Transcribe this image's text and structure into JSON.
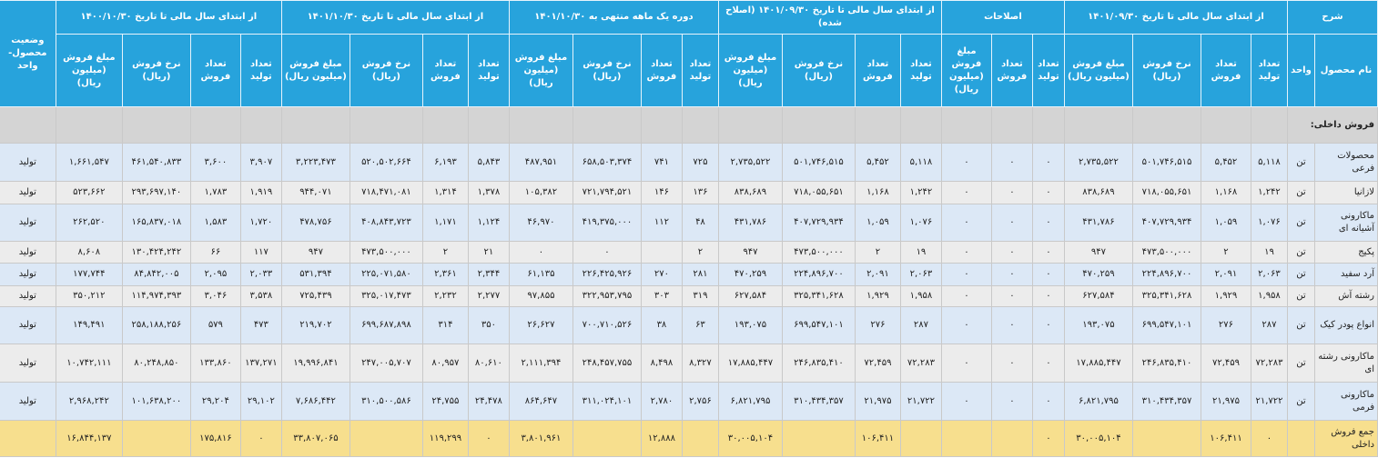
{
  "header": {
    "description": "شرح",
    "status": "وضعیت محصول-واحد",
    "name_col": "نام محصول",
    "unit_col": "واحد",
    "groups": [
      {
        "title": "از ابتدای سال مالی تا تاریخ ۱۴۰۱/۰۹/۳۰",
        "columns": [
          "تعداد تولید",
          "تعداد فروش",
          "نرخ فروش (ریال)",
          "مبلغ فروش (میلیون ریال)"
        ]
      },
      {
        "title": "اصلاحات",
        "columns": [
          "تعداد تولید",
          "تعداد فروش",
          "مبلغ فروش (میلیون ریال)"
        ]
      },
      {
        "title": "از ابتدای سال مالی تا تاریخ ۱۴۰۱/۰۹/۳۰ (اصلاح شده)",
        "columns": [
          "تعداد تولید",
          "تعداد فروش",
          "نرخ فروش (ریال)",
          "مبلغ فروش (میلیون ریال)"
        ]
      },
      {
        "title": "دوره یک ماهه منتهی به ۱۴۰۱/۱۰/۳۰",
        "columns": [
          "تعداد تولید",
          "تعداد فروش",
          "نرخ فروش (ریال)",
          "مبلغ فروش (میلیون ریال)"
        ]
      },
      {
        "title": "از ابتدای سال مالی تا تاریخ ۱۴۰۱/۱۰/۳۰",
        "columns": [
          "تعداد تولید",
          "تعداد فروش",
          "نرخ فروش (ریال)",
          "مبلغ فروش (میلیون ریال)"
        ]
      },
      {
        "title": "از ابتدای سال مالی تا تاریخ ۱۴۰۰/۱۰/۳۰",
        "columns": [
          "تعداد تولید",
          "تعداد فروش",
          "نرخ فروش (ریال)",
          "مبلغ فروش (میلیون ریال)"
        ]
      }
    ]
  },
  "table": {
    "section": "فروش داخلی:",
    "rows": [
      [
        "محصولات فرعی",
        "تن",
        "۵,۱۱۸",
        "۵,۴۵۲",
        "۵۰۱,۷۴۶,۵۱۵",
        "۲,۷۳۵,۵۲۲",
        "۰",
        "۰",
        "۰",
        "۵,۱۱۸",
        "۵,۴۵۲",
        "۵۰۱,۷۴۶,۵۱۵",
        "۲,۷۳۵,۵۲۲",
        "۷۲۵",
        "۷۴۱",
        "۶۵۸,۵۰۳,۳۷۴",
        "۴۸۷,۹۵۱",
        "۵,۸۴۳",
        "۶,۱۹۳",
        "۵۲۰,۵۰۲,۶۶۴",
        "۳,۲۲۳,۴۷۳",
        "۳,۹۰۷",
        "۳,۶۰۰",
        "۴۶۱,۵۴۰,۸۳۳",
        "۱,۶۶۱,۵۴۷",
        "تولید"
      ],
      [
        "لازانیا",
        "تن",
        "۱,۲۴۲",
        "۱,۱۶۸",
        "۷۱۸,۰۵۵,۶۵۱",
        "۸۳۸,۶۸۹",
        "۰",
        "۰",
        "۰",
        "۱,۲۴۲",
        "۱,۱۶۸",
        "۷۱۸,۰۵۵,۶۵۱",
        "۸۳۸,۶۸۹",
        "۱۳۶",
        "۱۴۶",
        "۷۲۱,۷۹۴,۵۲۱",
        "۱۰۵,۳۸۲",
        "۱,۳۷۸",
        "۱,۳۱۴",
        "۷۱۸,۴۷۱,۰۸۱",
        "۹۴۴,۰۷۱",
        "۱,۹۱۹",
        "۱,۷۸۳",
        "۲۹۳,۶۹۷,۱۴۰",
        "۵۲۳,۶۶۲",
        "تولید"
      ],
      [
        "ماکارونی آشیانه ای",
        "تن",
        "۱,۰۷۶",
        "۱,۰۵۹",
        "۴۰۷,۷۲۹,۹۳۴",
        "۴۳۱,۷۸۶",
        "۰",
        "۰",
        "۰",
        "۱,۰۷۶",
        "۱,۰۵۹",
        "۴۰۷,۷۲۹,۹۳۴",
        "۴۳۱,۷۸۶",
        "۴۸",
        "۱۱۲",
        "۴۱۹,۳۷۵,۰۰۰",
        "۴۶,۹۷۰",
        "۱,۱۲۴",
        "۱,۱۷۱",
        "۴۰۸,۸۴۳,۷۲۳",
        "۴۷۸,۷۵۶",
        "۱,۷۲۰",
        "۱,۵۸۳",
        "۱۶۵,۸۳۷,۰۱۸",
        "۲۶۲,۵۲۰",
        "تولید"
      ],
      [
        "پکیج",
        "تن",
        "۱۹",
        "۲",
        "۴۷۳,۵۰۰,۰۰۰",
        "۹۴۷",
        "۰",
        "۰",
        "۰",
        "۱۹",
        "۲",
        "۴۷۳,۵۰۰,۰۰۰",
        "۹۴۷",
        "۲",
        null,
        "۰",
        "۰",
        "۲۱",
        "۲",
        "۴۷۳,۵۰۰,۰۰۰",
        "۹۴۷",
        "۱۱۷",
        "۶۶",
        "۱۳۰,۴۲۴,۲۴۲",
        "۸,۶۰۸",
        "تولید"
      ],
      [
        "آرد سفید",
        "تن",
        "۲,۰۶۳",
        "۲,۰۹۱",
        "۲۲۴,۸۹۶,۷۰۰",
        "۴۷۰,۲۵۹",
        "۰",
        "۰",
        "۰",
        "۲,۰۶۳",
        "۲,۰۹۱",
        "۲۲۴,۸۹۶,۷۰۰",
        "۴۷۰,۲۵۹",
        "۲۸۱",
        "۲۷۰",
        "۲۲۶,۴۲۵,۹۲۶",
        "۶۱,۱۳۵",
        "۲,۳۴۴",
        "۲,۳۶۱",
        "۲۲۵,۰۷۱,۵۸۰",
        "۵۳۱,۳۹۴",
        "۲,۰۳۳",
        "۲,۰۹۵",
        "۸۴,۸۴۲,۰۰۵",
        "۱۷۷,۷۴۴",
        "تولید"
      ],
      [
        "رشته آش",
        "تن",
        "۱,۹۵۸",
        "۱,۹۲۹",
        "۳۲۵,۳۴۱,۶۲۸",
        "۶۲۷,۵۸۴",
        "۰",
        "۰",
        "۰",
        "۱,۹۵۸",
        "۱,۹۲۹",
        "۳۲۵,۳۴۱,۶۲۸",
        "۶۲۷,۵۸۴",
        "۳۱۹",
        "۳۰۳",
        "۳۲۲,۹۵۳,۷۹۵",
        "۹۷,۸۵۵",
        "۲,۲۷۷",
        "۲,۲۳۲",
        "۳۲۵,۰۱۷,۴۷۳",
        "۷۲۵,۴۳۹",
        "۳,۵۳۸",
        "۳,۰۴۶",
        "۱۱۴,۹۷۴,۳۹۳",
        "۳۵۰,۲۱۲",
        "تولید"
      ],
      [
        "انواع پودر کیک",
        "تن",
        "۲۸۷",
        "۲۷۶",
        "۶۹۹,۵۴۷,۱۰۱",
        "۱۹۳,۰۷۵",
        "۰",
        "۰",
        "۰",
        "۲۸۷",
        "۲۷۶",
        "۶۹۹,۵۴۷,۱۰۱",
        "۱۹۳,۰۷۵",
        "۶۳",
        "۳۸",
        "۷۰۰,۷۱۰,۵۲۶",
        "۲۶,۶۲۷",
        "۳۵۰",
        "۳۱۴",
        "۶۹۹,۶۸۷,۸۹۸",
        "۲۱۹,۷۰۲",
        "۴۷۳",
        "۵۷۹",
        "۲۵۸,۱۸۸,۲۵۶",
        "۱۴۹,۴۹۱",
        "تولید"
      ],
      [
        "ماکارونی رشته ای",
        "تن",
        "۷۲,۲۸۳",
        "۷۲,۴۵۹",
        "۲۴۶,۸۳۵,۴۱۰",
        "۱۷,۸۸۵,۴۴۷",
        "۰",
        "۰",
        "۰",
        "۷۲,۲۸۳",
        "۷۲,۴۵۹",
        "۲۴۶,۸۳۵,۴۱۰",
        "۱۷,۸۸۵,۴۴۷",
        "۸,۳۲۷",
        "۸,۴۹۸",
        "۲۴۸,۴۵۷,۷۵۵",
        "۲,۱۱۱,۳۹۴",
        "۸۰,۶۱۰",
        "۸۰,۹۵۷",
        "۲۴۷,۰۰۵,۷۰۷",
        "۱۹,۹۹۶,۸۴۱",
        "۱۳۷,۲۷۱",
        "۱۳۳,۸۶۰",
        "۸۰,۲۴۸,۸۵۰",
        "۱۰,۷۴۲,۱۱۱",
        "تولید"
      ],
      [
        "ماکارونی فرمی",
        "تن",
        "۲۱,۷۲۲",
        "۲۱,۹۷۵",
        "۳۱۰,۴۳۴,۳۵۷",
        "۶,۸۲۱,۷۹۵",
        "۰",
        "۰",
        "۰",
        "۲۱,۷۲۲",
        "۲۱,۹۷۵",
        "۳۱۰,۴۳۴,۳۵۷",
        "۶,۸۲۱,۷۹۵",
        "۲,۷۵۶",
        "۲,۷۸۰",
        "۳۱۱,۰۲۴,۱۰۱",
        "۸۶۴,۶۴۷",
        "۲۴,۴۷۸",
        "۲۴,۷۵۵",
        "۳۱۰,۵۰۰,۵۸۶",
        "۷,۶۸۶,۴۴۲",
        "۲۹,۱۰۲",
        "۲۹,۲۰۴",
        "۱۰۱,۶۳۸,۲۰۰",
        "۲,۹۶۸,۲۴۲",
        "تولید"
      ]
    ],
    "total": [
      "جمع فروش داخلی",
      null,
      "۰",
      "۱۰۶,۴۱۱",
      null,
      "۳۰,۰۰۵,۱۰۴",
      "۰",
      null,
      null,
      null,
      "۱۰۶,۴۱۱",
      null,
      "۳۰,۰۰۵,۱۰۴",
      null,
      "۱۲,۸۸۸",
      null,
      "۳,۸۰۱,۹۶۱",
      "۰",
      "۱۱۹,۲۹۹",
      null,
      "۳۳,۸۰۷,۰۶۵",
      "۰",
      "۱۷۵,۸۱۶",
      null,
      "۱۶,۸۴۴,۱۳۷",
      null
    ]
  }
}
